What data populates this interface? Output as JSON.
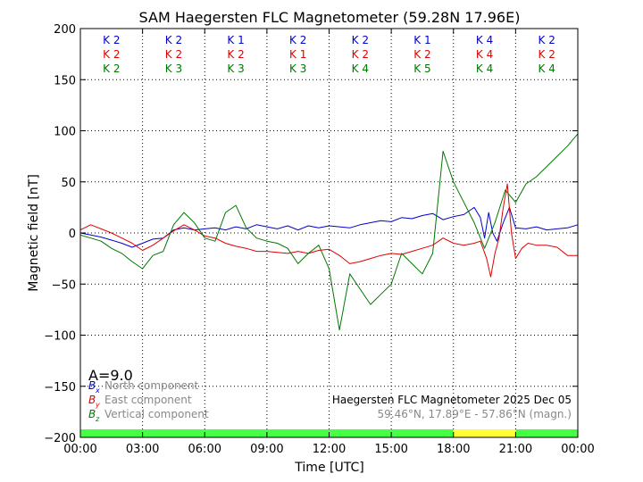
{
  "chart_data": {
    "type": "line",
    "title": "SAM Haegersten FLC Magnetometer (59.28N 17.96E)",
    "xlabel": "Time [UTC]",
    "ylabel": "Magnetic field [nT]",
    "xlim": [
      0,
      24
    ],
    "ylim": [
      -200,
      200
    ],
    "xticks": [
      0,
      3,
      6,
      9,
      12,
      15,
      18,
      21,
      24
    ],
    "xtick_labels": [
      "00:00",
      "03:00",
      "06:00",
      "09:00",
      "12:00",
      "15:00",
      "18:00",
      "21:00",
      "00:00"
    ],
    "yticks": [
      -200,
      -150,
      -100,
      -50,
      0,
      50,
      100,
      150,
      200
    ],
    "ytick_labels": [
      "−200",
      "−150",
      "−100",
      "−50",
      "0",
      "50",
      "100",
      "150",
      "200"
    ],
    "grid": true,
    "k_indices": {
      "rows": [
        {
          "component": "Bx",
          "color": "#0000cc",
          "labels": [
            "K 2",
            "K 2",
            "K 1",
            "K 2",
            "K 2",
            "K 1",
            "K 4",
            "K 2"
          ]
        },
        {
          "component": "By",
          "color": "#e00000",
          "labels": [
            "K 2",
            "K 2",
            "K 2",
            "K 1",
            "K 2",
            "K 2",
            "K 4",
            "K 2"
          ]
        },
        {
          "component": "Bz",
          "color": "#007700",
          "labels": [
            "K 2",
            "K 3",
            "K 3",
            "K 3",
            "K 4",
            "K 5",
            "K 4",
            "K 4"
          ]
        }
      ]
    },
    "a_index": "A=9.0",
    "legend": {
      "placement": "lower-left",
      "entries": [
        {
          "symbol": "B",
          "sub": "x",
          "label": "North component",
          "color": "#0000cc"
        },
        {
          "symbol": "B",
          "sub": "y",
          "label": "East component",
          "color": "#e00000"
        },
        {
          "symbol": "B",
          "sub": "z",
          "label": "Vertical component",
          "color": "#007700"
        }
      ]
    },
    "annotation": {
      "line1": "Haegersten FLC Magnetometer 2025 Dec 05",
      "line2": "59.46°N, 17.89°E - 57.86°N (magn.)"
    },
    "daylight_bar": [
      {
        "from": 0,
        "to": 18,
        "color": "#44ff44"
      },
      {
        "from": 18,
        "to": 21,
        "color": "#ffff33"
      },
      {
        "from": 21,
        "to": 24,
        "color": "#44ff44"
      }
    ],
    "series": [
      {
        "name": "Bx North component",
        "color": "#0000cc",
        "points": [
          [
            0,
            0
          ],
          [
            0.5,
            -2
          ],
          [
            1,
            -4
          ],
          [
            1.5,
            -7
          ],
          [
            2,
            -10
          ],
          [
            2.5,
            -14
          ],
          [
            3,
            -10
          ],
          [
            3.5,
            -6
          ],
          [
            4,
            -5
          ],
          [
            4.5,
            3
          ],
          [
            5,
            5
          ],
          [
            5.5,
            3
          ],
          [
            6,
            4
          ],
          [
            6.5,
            5
          ],
          [
            7,
            3
          ],
          [
            7.5,
            6
          ],
          [
            8,
            4
          ],
          [
            8.5,
            8
          ],
          [
            9,
            6
          ],
          [
            9.5,
            4
          ],
          [
            10,
            7
          ],
          [
            10.5,
            3
          ],
          [
            11,
            7
          ],
          [
            11.5,
            5
          ],
          [
            12,
            7
          ],
          [
            12.5,
            6
          ],
          [
            13,
            5
          ],
          [
            13.5,
            8
          ],
          [
            14,
            10
          ],
          [
            14.5,
            12
          ],
          [
            15,
            11
          ],
          [
            15.5,
            15
          ],
          [
            16,
            14
          ],
          [
            16.5,
            17
          ],
          [
            17,
            19
          ],
          [
            17.5,
            13
          ],
          [
            18,
            16
          ],
          [
            18.5,
            18
          ],
          [
            19,
            25
          ],
          [
            19.3,
            15
          ],
          [
            19.5,
            -5
          ],
          [
            19.7,
            20
          ],
          [
            19.9,
            0
          ],
          [
            20.1,
            -8
          ],
          [
            20.4,
            10
          ],
          [
            20.7,
            25
          ],
          [
            21,
            5
          ],
          [
            21.5,
            4
          ],
          [
            22,
            6
          ],
          [
            22.5,
            3
          ],
          [
            23,
            4
          ],
          [
            23.5,
            5
          ],
          [
            24,
            8
          ]
        ]
      },
      {
        "name": "By East component",
        "color": "#e00000",
        "points": [
          [
            0,
            3
          ],
          [
            0.5,
            8
          ],
          [
            1,
            4
          ],
          [
            1.5,
            0
          ],
          [
            2,
            -5
          ],
          [
            2.5,
            -10
          ],
          [
            3,
            -17
          ],
          [
            3.5,
            -12
          ],
          [
            4,
            -5
          ],
          [
            4.5,
            2
          ],
          [
            5,
            8
          ],
          [
            5.5,
            3
          ],
          [
            6,
            -3
          ],
          [
            6.5,
            -5
          ],
          [
            7,
            -10
          ],
          [
            7.5,
            -13
          ],
          [
            8,
            -15
          ],
          [
            8.5,
            -18
          ],
          [
            9,
            -18
          ],
          [
            9.5,
            -19
          ],
          [
            10,
            -20
          ],
          [
            10.5,
            -18
          ],
          [
            11,
            -20
          ],
          [
            11.5,
            -17
          ],
          [
            12,
            -16
          ],
          [
            12.5,
            -22
          ],
          [
            13,
            -30
          ],
          [
            13.5,
            -28
          ],
          [
            14,
            -25
          ],
          [
            14.5,
            -22
          ],
          [
            15,
            -20
          ],
          [
            15.5,
            -21
          ],
          [
            16,
            -18
          ],
          [
            16.5,
            -15
          ],
          [
            17,
            -12
          ],
          [
            17.5,
            -5
          ],
          [
            18,
            -10
          ],
          [
            18.5,
            -12
          ],
          [
            19,
            -10
          ],
          [
            19.3,
            -8
          ],
          [
            19.6,
            -25
          ],
          [
            19.8,
            -43
          ],
          [
            20,
            -20
          ],
          [
            20.2,
            -5
          ],
          [
            20.4,
            25
          ],
          [
            20.6,
            48
          ],
          [
            20.8,
            0
          ],
          [
            21,
            -25
          ],
          [
            21.3,
            -15
          ],
          [
            21.6,
            -10
          ],
          [
            22,
            -12
          ],
          [
            22.5,
            -12
          ],
          [
            23,
            -14
          ],
          [
            23.5,
            -22
          ],
          [
            24,
            -22
          ]
        ]
      },
      {
        "name": "Bz Vertical component",
        "color": "#007700",
        "points": [
          [
            0,
            -2
          ],
          [
            0.5,
            -5
          ],
          [
            1,
            -8
          ],
          [
            1.5,
            -15
          ],
          [
            2,
            -20
          ],
          [
            2.5,
            -28
          ],
          [
            3,
            -35
          ],
          [
            3.5,
            -22
          ],
          [
            4,
            -18
          ],
          [
            4.5,
            8
          ],
          [
            5,
            20
          ],
          [
            5.5,
            10
          ],
          [
            6,
            -5
          ],
          [
            6.5,
            -8
          ],
          [
            7,
            20
          ],
          [
            7.5,
            27
          ],
          [
            8,
            5
          ],
          [
            8.5,
            -5
          ],
          [
            9,
            -8
          ],
          [
            9.5,
            -10
          ],
          [
            10,
            -15
          ],
          [
            10.5,
            -30
          ],
          [
            11,
            -20
          ],
          [
            11.5,
            -12
          ],
          [
            12,
            -35
          ],
          [
            12.5,
            -95
          ],
          [
            13,
            -40
          ],
          [
            13.5,
            -55
          ],
          [
            14,
            -70
          ],
          [
            14.5,
            -60
          ],
          [
            15,
            -50
          ],
          [
            15.5,
            -20
          ],
          [
            16,
            -30
          ],
          [
            16.5,
            -40
          ],
          [
            17,
            -20
          ],
          [
            17.5,
            80
          ],
          [
            18,
            50
          ],
          [
            18.5,
            30
          ],
          [
            19,
            10
          ],
          [
            19.5,
            -15
          ],
          [
            20,
            10
          ],
          [
            20.5,
            42
          ],
          [
            21,
            30
          ],
          [
            21.5,
            48
          ],
          [
            22,
            55
          ],
          [
            22.5,
            65
          ],
          [
            23,
            75
          ],
          [
            23.5,
            85
          ],
          [
            24,
            97
          ]
        ]
      }
    ]
  }
}
